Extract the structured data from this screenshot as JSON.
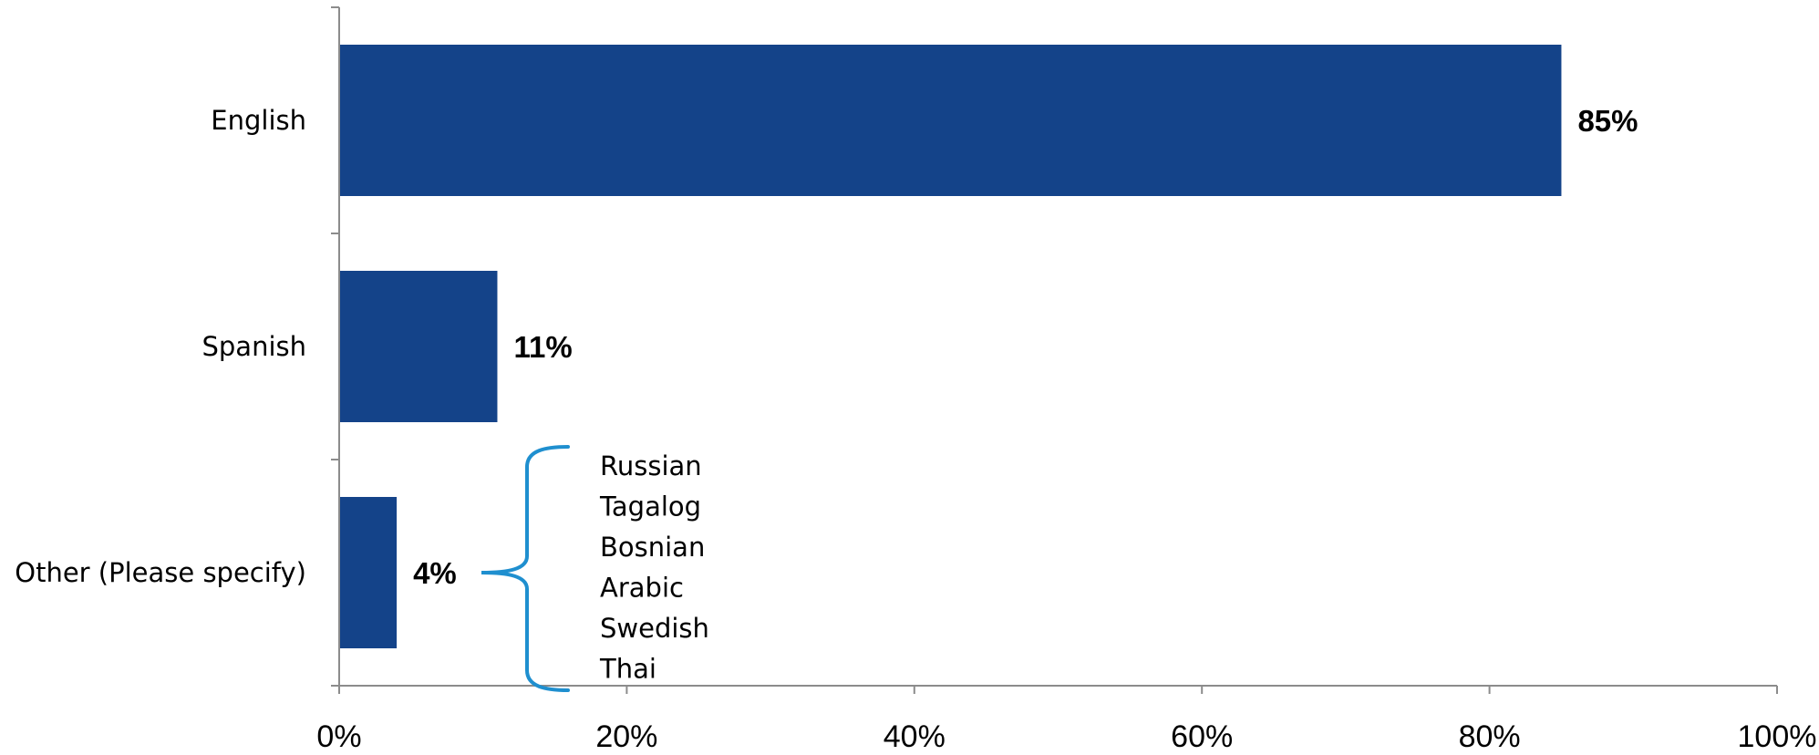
{
  "chart_data": {
    "type": "bar",
    "orientation": "horizontal",
    "categories": [
      "English",
      "Spanish",
      "Other (Please specify)"
    ],
    "values": [
      85,
      11,
      4
    ],
    "value_labels": [
      "85%",
      "11%",
      "4%"
    ],
    "xlim": [
      0,
      100
    ],
    "x_ticks": [
      0,
      20,
      40,
      60,
      80,
      100
    ],
    "x_tick_labels": [
      "0%",
      "20%",
      "40%",
      "60%",
      "80%",
      "100%"
    ],
    "title": "",
    "xlabel": "",
    "ylabel": "",
    "grid": false,
    "legend": "none",
    "bar_color": "#144389",
    "annotation": {
      "bracket_color": "#1f8fcf",
      "items": [
        "Russian",
        "Tagalog",
        "Bosnian",
        "Arabic",
        "Swedish",
        "Thai"
      ]
    }
  }
}
